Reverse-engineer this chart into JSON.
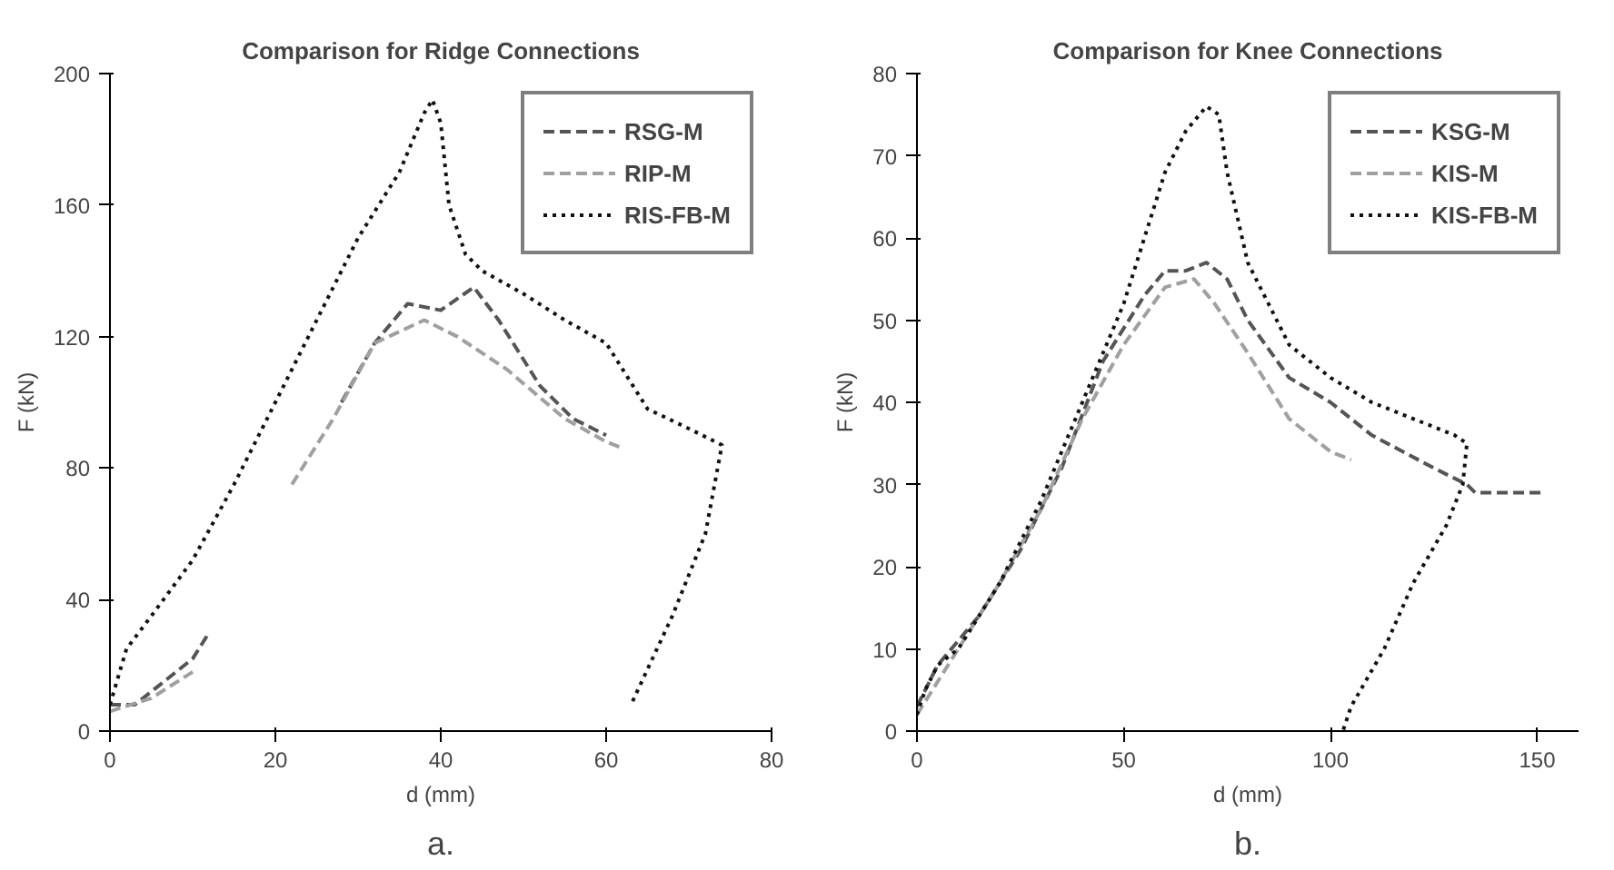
{
  "chart_data": [
    {
      "type": "line",
      "title": "Comparison for Ridge Connections",
      "xlabel": "d (mm)",
      "ylabel": "F (kN)",
      "annotations": [
        "a."
      ],
      "xlim": [
        0,
        80
      ],
      "ylim": [
        0,
        200
      ],
      "xticks": [
        0,
        20,
        40,
        60,
        80
      ],
      "yticks": [
        0,
        40,
        80,
        120,
        160,
        200
      ],
      "grid": false,
      "legend": "top right",
      "marker": "none",
      "series": [
        {
          "name": "RSG-M",
          "color": "#555555",
          "line_style": "dashed",
          "x": [
            0,
            3,
            6,
            10,
            12,
            25,
            28,
            32,
            36,
            40,
            44,
            47,
            52,
            56,
            60
          ],
          "values": [
            8,
            8,
            14,
            22,
            30,
            null,
            100,
            118,
            130,
            128,
            135,
            125,
            105,
            95,
            90
          ]
        },
        {
          "name": "RIP-M",
          "color": "#a0a0a0",
          "line_style": "dashed",
          "x": [
            0,
            5,
            10,
            12,
            22,
            27,
            32,
            38,
            42,
            48,
            55,
            60,
            62
          ],
          "values": [
            6,
            10,
            18,
            null,
            75,
            95,
            118,
            125,
            120,
            110,
            95,
            88,
            86
          ]
        },
        {
          "name": "RIS-FB-M",
          "color": "#111111",
          "line_style": "dotted",
          "x": [
            0,
            2,
            5,
            10,
            15,
            20,
            25,
            30,
            35,
            38,
            39,
            40,
            41,
            43,
            45,
            50,
            55,
            60,
            62,
            65,
            70,
            74,
            72,
            68,
            63
          ],
          "values": [
            8,
            25,
            35,
            52,
            75,
            100,
            125,
            150,
            170,
            188,
            192,
            185,
            160,
            145,
            140,
            133,
            125,
            118,
            110,
            98,
            92,
            87,
            60,
            35,
            8
          ]
        }
      ]
    },
    {
      "type": "line",
      "title": "Comparison for Knee Connections",
      "xlabel": "d (mm)",
      "ylabel": "F (kN)",
      "annotations": [
        "b."
      ],
      "xlim": [
        0,
        160
      ],
      "ylim": [
        0,
        80
      ],
      "xticks": [
        0,
        50,
        100,
        150
      ],
      "yticks": [
        0,
        10,
        20,
        30,
        40,
        50,
        60,
        70,
        80
      ],
      "grid": false,
      "legend": "top right",
      "marker": "none",
      "series": [
        {
          "name": "KSG-M",
          "color": "#555555",
          "line_style": "dashed",
          "x": [
            0,
            5,
            15,
            25,
            35,
            45,
            55,
            60,
            65,
            70,
            75,
            80,
            90,
            100,
            110,
            125,
            133,
            135,
            145,
            152
          ],
          "values": [
            3,
            8,
            14,
            22,
            32,
            45,
            53,
            56,
            56,
            57,
            55,
            50,
            43,
            40,
            36,
            32,
            30,
            29,
            29,
            29
          ]
        },
        {
          "name": "KIS-M",
          "color": "#a0a0a0",
          "line_style": "dashed",
          "x": [
            0,
            10,
            20,
            30,
            40,
            50,
            60,
            67,
            72,
            80,
            90,
            100,
            105
          ],
          "values": [
            2,
            10,
            18,
            27,
            38,
            47,
            54,
            55,
            52,
            46,
            38,
            34,
            33
          ]
        },
        {
          "name": "KIS-FB-M",
          "color": "#111111",
          "line_style": "dotted",
          "x": [
            0,
            2,
            5,
            10,
            15,
            20,
            30,
            40,
            50,
            55,
            60,
            65,
            70,
            73,
            75,
            80,
            90,
            100,
            110,
            120,
            130,
            133,
            132,
            128,
            120,
            113,
            105,
            103
          ],
          "values": [
            2,
            5,
            8,
            10,
            14,
            18,
            28,
            40,
            52,
            60,
            68,
            73,
            76,
            75,
            68,
            57,
            47,
            43,
            40,
            38,
            36,
            35,
            30,
            25,
            18,
            10,
            3,
            0
          ]
        }
      ]
    }
  ]
}
